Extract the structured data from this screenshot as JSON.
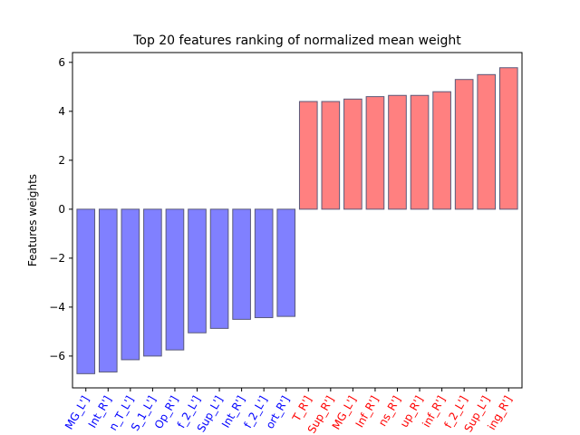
{
  "chart_data": {
    "type": "bar",
    "title": "Top 20 features ranking of normalized mean weight",
    "xlabel": "",
    "ylabel": "Features weights",
    "ylim": [
      -7.3,
      6.4
    ],
    "yticks": [
      -6,
      -4,
      -2,
      0,
      2,
      4,
      6
    ],
    "ytick_labels": [
      "−6",
      "−4",
      "−2",
      "0",
      "2",
      "4",
      "6"
    ],
    "categories": [
      "MG_L']",
      "Int_R']",
      "n_T_L']",
      "S_1_L']",
      "Op_R']",
      "f_2_L']",
      "Sup_L']",
      "Int_R']",
      "f_2_L']",
      "ort_R']",
      "T_R']",
      "Sup_R']",
      "MG_L']",
      "Inf_R']",
      "ns_R']",
      "up_R']",
      "inf_R']",
      "f_2_L']",
      "Sup_L']",
      "ing_R']"
    ],
    "values": [
      -6.72,
      -6.65,
      -6.15,
      -6.0,
      -5.75,
      -5.05,
      -4.87,
      -4.5,
      -4.43,
      -4.38,
      4.4,
      4.4,
      4.5,
      4.6,
      4.65,
      4.65,
      4.8,
      5.3,
      5.5,
      5.78
    ],
    "colors": {
      "negative_fill": "#8080ff",
      "positive_fill": "#ff8080",
      "edge": "#5a5a7a",
      "negative_label": "#0000ff",
      "positive_label": "#ff0000"
    },
    "grid": false,
    "legend": "none"
  }
}
